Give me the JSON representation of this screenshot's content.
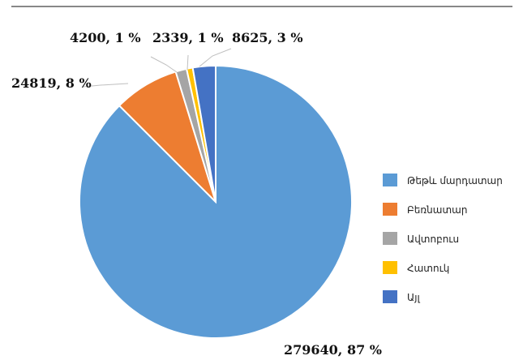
{
  "chart_data": {
    "type": "pie",
    "title": "",
    "series": [
      {
        "values": [
          279640,
          24819,
          4200,
          2339,
          8625
        ]
      }
    ],
    "categories": [
      "Թեթև մարդատար",
      "Բեռնատար",
      "Ավտոբուս",
      "Հատուկ",
      "Այլ"
    ],
    "slices": [
      {
        "label": "Թեթև մարդատար",
        "value": 279640,
        "percent": 87,
        "color": "#5b9bd5",
        "data_label": "279640, 87 %"
      },
      {
        "label": "Բեռնատար",
        "value": 24819,
        "percent": 8,
        "color": "#ed7d31",
        "data_label": "24819, 8 %"
      },
      {
        "label": "Ավտոբուս",
        "value": 4200,
        "percent": 1,
        "color": "#a5a5a5",
        "data_label": "4200, 1 %"
      },
      {
        "label": "Հատուկ",
        "value": 2339,
        "percent": 1,
        "color": "#ffc000",
        "data_label": "2339, 1 %"
      },
      {
        "label": "Այլ",
        "value": 8625,
        "percent": 3,
        "color": "#4472c4",
        "data_label": "8625, 3 %"
      }
    ],
    "legend": {
      "position": "right",
      "items": [
        {
          "label": "Թեթև մարդատար",
          "color": "#5b9bd5"
        },
        {
          "label": "Բեռնատար",
          "color": "#ed7d31"
        },
        {
          "label": "Ավտոբուս",
          "color": "#a5a5a5"
        },
        {
          "label": "Հատուկ",
          "color": "#ffc000"
        },
        {
          "label": "Այլ",
          "color": "#4472c4"
        }
      ]
    }
  }
}
